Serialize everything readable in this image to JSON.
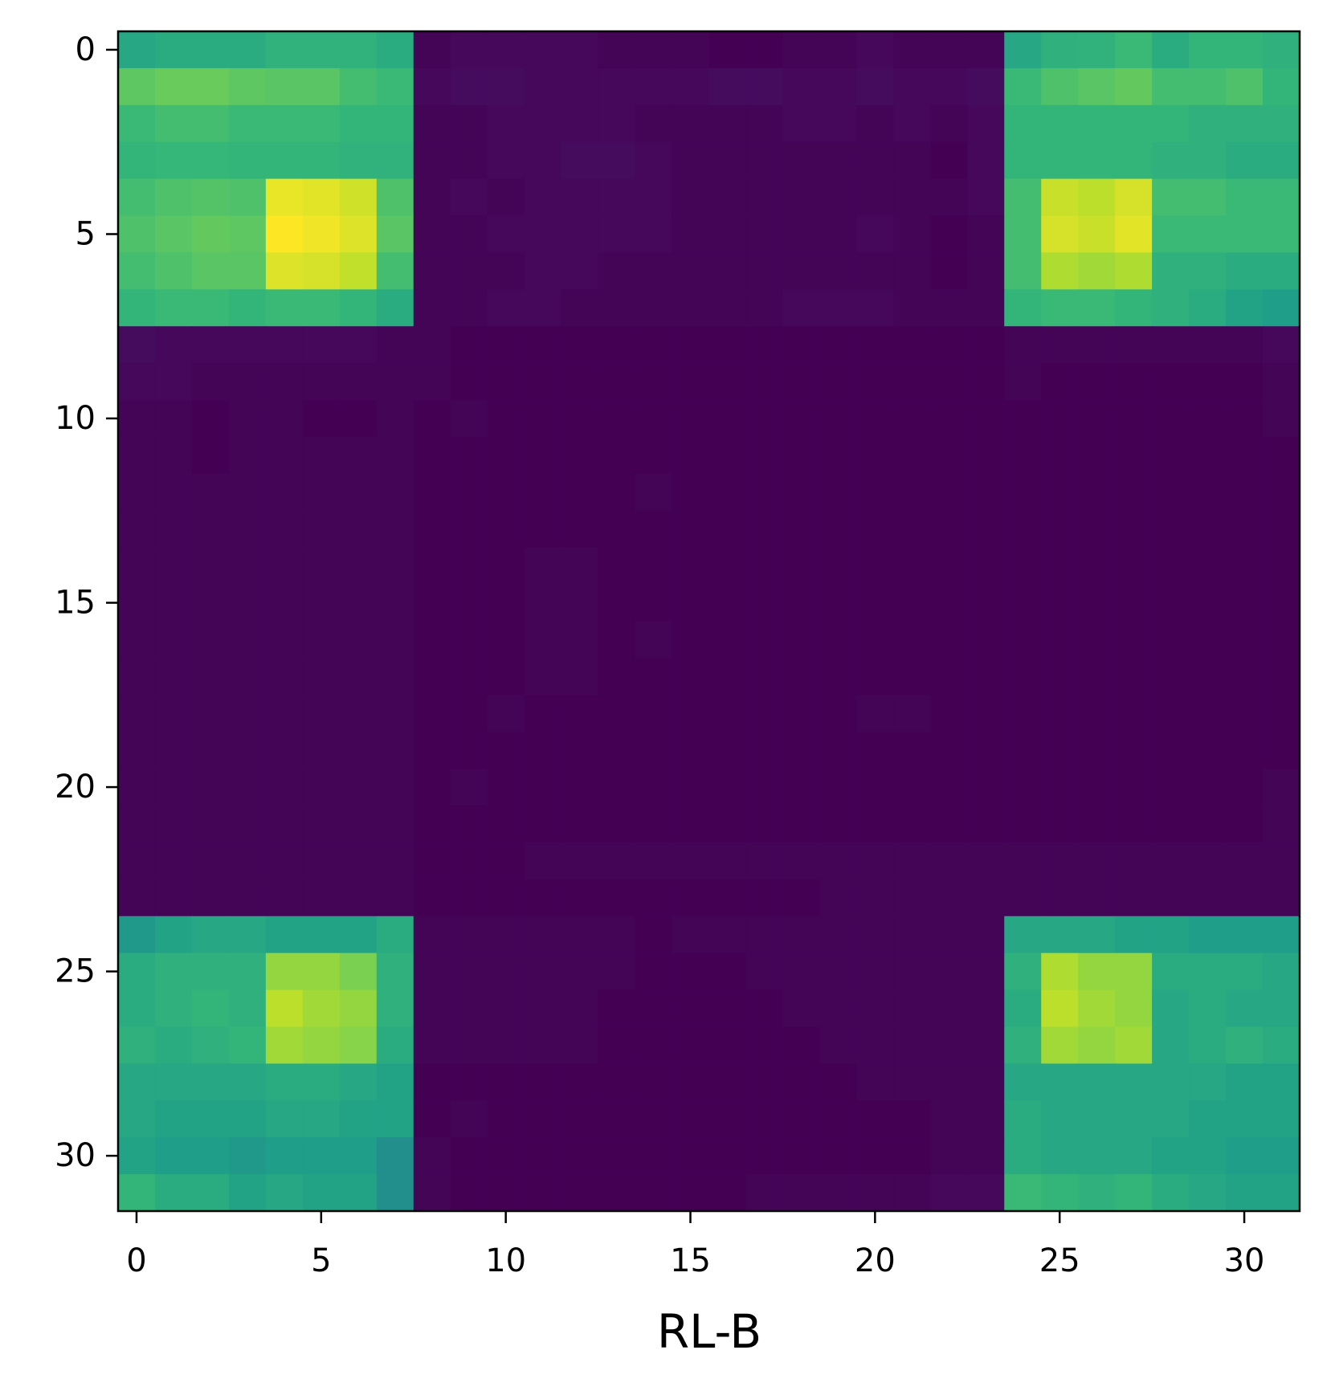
{
  "chart_data": {
    "type": "heatmap",
    "xlabel": "RL-B",
    "colormap": "viridis",
    "xlim": [
      -0.5,
      31.5
    ],
    "ylim": [
      31.5,
      -0.5
    ],
    "xticks": [
      0,
      5,
      10,
      15,
      20,
      25,
      30
    ],
    "yticks": [
      0,
      5,
      10,
      15,
      20,
      25,
      30
    ],
    "values": [
      [
        0.6,
        0.62,
        0.62,
        0.62,
        0.65,
        0.65,
        0.65,
        0.62,
        0.02,
        0.03,
        0.03,
        0.03,
        0.03,
        0.02,
        0.02,
        0.02,
        0.01,
        0.01,
        0.02,
        0.02,
        0.03,
        0.02,
        0.02,
        0.02,
        0.6,
        0.64,
        0.65,
        0.68,
        0.62,
        0.66,
        0.66,
        0.64
      ],
      [
        0.75,
        0.77,
        0.77,
        0.75,
        0.74,
        0.74,
        0.7,
        0.68,
        0.03,
        0.04,
        0.04,
        0.03,
        0.03,
        0.03,
        0.03,
        0.03,
        0.04,
        0.04,
        0.03,
        0.03,
        0.04,
        0.03,
        0.03,
        0.04,
        0.68,
        0.72,
        0.74,
        0.76,
        0.7,
        0.7,
        0.72,
        0.66
      ],
      [
        0.68,
        0.7,
        0.7,
        0.68,
        0.68,
        0.68,
        0.66,
        0.66,
        0.02,
        0.02,
        0.03,
        0.03,
        0.03,
        0.03,
        0.02,
        0.02,
        0.02,
        0.02,
        0.03,
        0.03,
        0.02,
        0.03,
        0.02,
        0.03,
        0.66,
        0.66,
        0.66,
        0.66,
        0.66,
        0.64,
        0.64,
        0.64
      ],
      [
        0.66,
        0.67,
        0.67,
        0.66,
        0.66,
        0.66,
        0.65,
        0.65,
        0.02,
        0.02,
        0.03,
        0.03,
        0.04,
        0.04,
        0.03,
        0.02,
        0.02,
        0.02,
        0.02,
        0.02,
        0.02,
        0.02,
        0.01,
        0.03,
        0.66,
        0.66,
        0.66,
        0.66,
        0.64,
        0.64,
        0.62,
        0.62
      ],
      [
        0.7,
        0.72,
        0.73,
        0.72,
        0.97,
        0.96,
        0.93,
        0.72,
        0.02,
        0.03,
        0.02,
        0.03,
        0.03,
        0.03,
        0.03,
        0.02,
        0.02,
        0.02,
        0.02,
        0.02,
        0.02,
        0.02,
        0.02,
        0.03,
        0.7,
        0.92,
        0.9,
        0.94,
        0.7,
        0.7,
        0.68,
        0.68
      ],
      [
        0.72,
        0.74,
        0.76,
        0.75,
        1.0,
        0.98,
        0.95,
        0.74,
        0.02,
        0.02,
        0.03,
        0.03,
        0.03,
        0.03,
        0.03,
        0.02,
        0.02,
        0.02,
        0.02,
        0.02,
        0.03,
        0.02,
        0.01,
        0.02,
        0.7,
        0.94,
        0.92,
        0.96,
        0.68,
        0.68,
        0.68,
        0.68
      ],
      [
        0.7,
        0.72,
        0.74,
        0.74,
        0.95,
        0.94,
        0.91,
        0.7,
        0.02,
        0.02,
        0.02,
        0.03,
        0.03,
        0.02,
        0.02,
        0.02,
        0.02,
        0.02,
        0.02,
        0.02,
        0.02,
        0.02,
        0.01,
        0.02,
        0.7,
        0.88,
        0.86,
        0.88,
        0.64,
        0.64,
        0.62,
        0.62
      ],
      [
        0.66,
        0.68,
        0.68,
        0.66,
        0.68,
        0.68,
        0.66,
        0.62,
        0.02,
        0.02,
        0.03,
        0.03,
        0.02,
        0.02,
        0.02,
        0.02,
        0.02,
        0.02,
        0.03,
        0.03,
        0.03,
        0.02,
        0.02,
        0.02,
        0.66,
        0.68,
        0.68,
        0.66,
        0.64,
        0.62,
        0.58,
        0.56
      ],
      [
        0.04,
        0.03,
        0.03,
        0.03,
        0.03,
        0.03,
        0.03,
        0.02,
        0.02,
        0.01,
        0.01,
        0.01,
        0.01,
        0.01,
        0.01,
        0.01,
        0.01,
        0.01,
        0.01,
        0.01,
        0.01,
        0.01,
        0.01,
        0.01,
        0.02,
        0.02,
        0.02,
        0.02,
        0.02,
        0.02,
        0.02,
        0.03
      ],
      [
        0.03,
        0.03,
        0.02,
        0.02,
        0.02,
        0.02,
        0.02,
        0.02,
        0.02,
        0.01,
        0.01,
        0.01,
        0.01,
        0.01,
        0.01,
        0.01,
        0.01,
        0.01,
        0.01,
        0.01,
        0.01,
        0.01,
        0.01,
        0.01,
        0.02,
        0.01,
        0.01,
        0.01,
        0.01,
        0.01,
        0.01,
        0.02
      ],
      [
        0.02,
        0.02,
        0.01,
        0.02,
        0.02,
        0.01,
        0.01,
        0.02,
        0.01,
        0.02,
        0.01,
        0.01,
        0.01,
        0.01,
        0.01,
        0.01,
        0.01,
        0.01,
        0.01,
        0.01,
        0.01,
        0.01,
        0.01,
        0.01,
        0.01,
        0.01,
        0.01,
        0.01,
        0.01,
        0.01,
        0.01,
        0.02
      ],
      [
        0.02,
        0.02,
        0.01,
        0.02,
        0.02,
        0.02,
        0.02,
        0.02,
        0.01,
        0.01,
        0.01,
        0.01,
        0.01,
        0.01,
        0.01,
        0.01,
        0.01,
        0.01,
        0.01,
        0.01,
        0.01,
        0.01,
        0.01,
        0.01,
        0.01,
        0.01,
        0.01,
        0.01,
        0.01,
        0.01,
        0.01,
        0.01
      ],
      [
        0.02,
        0.02,
        0.02,
        0.02,
        0.02,
        0.02,
        0.02,
        0.02,
        0.01,
        0.01,
        0.01,
        0.01,
        0.01,
        0.01,
        0.02,
        0.01,
        0.01,
        0.01,
        0.01,
        0.01,
        0.01,
        0.01,
        0.01,
        0.01,
        0.01,
        0.01,
        0.01,
        0.01,
        0.01,
        0.01,
        0.01,
        0.01
      ],
      [
        0.02,
        0.02,
        0.02,
        0.02,
        0.02,
        0.02,
        0.02,
        0.02,
        0.01,
        0.01,
        0.01,
        0.01,
        0.01,
        0.01,
        0.01,
        0.01,
        0.01,
        0.01,
        0.01,
        0.01,
        0.01,
        0.01,
        0.01,
        0.01,
        0.01,
        0.01,
        0.01,
        0.01,
        0.01,
        0.01,
        0.01,
        0.01
      ],
      [
        0.02,
        0.02,
        0.02,
        0.02,
        0.02,
        0.02,
        0.02,
        0.02,
        0.01,
        0.01,
        0.01,
        0.02,
        0.02,
        0.01,
        0.01,
        0.01,
        0.01,
        0.01,
        0.01,
        0.01,
        0.01,
        0.01,
        0.01,
        0.01,
        0.01,
        0.01,
        0.01,
        0.01,
        0.01,
        0.01,
        0.01,
        0.01
      ],
      [
        0.02,
        0.02,
        0.02,
        0.02,
        0.02,
        0.02,
        0.02,
        0.02,
        0.01,
        0.01,
        0.01,
        0.02,
        0.02,
        0.01,
        0.01,
        0.01,
        0.01,
        0.01,
        0.01,
        0.01,
        0.01,
        0.01,
        0.01,
        0.01,
        0.01,
        0.01,
        0.01,
        0.01,
        0.01,
        0.01,
        0.01,
        0.01
      ],
      [
        0.02,
        0.02,
        0.02,
        0.02,
        0.02,
        0.02,
        0.02,
        0.02,
        0.01,
        0.01,
        0.01,
        0.02,
        0.02,
        0.01,
        0.02,
        0.01,
        0.01,
        0.01,
        0.01,
        0.01,
        0.01,
        0.01,
        0.01,
        0.01,
        0.01,
        0.01,
        0.01,
        0.01,
        0.01,
        0.01,
        0.01,
        0.01
      ],
      [
        0.02,
        0.02,
        0.02,
        0.02,
        0.02,
        0.02,
        0.02,
        0.02,
        0.01,
        0.01,
        0.01,
        0.02,
        0.02,
        0.01,
        0.01,
        0.01,
        0.01,
        0.01,
        0.01,
        0.01,
        0.01,
        0.01,
        0.01,
        0.01,
        0.01,
        0.01,
        0.01,
        0.01,
        0.01,
        0.01,
        0.01,
        0.01
      ],
      [
        0.02,
        0.02,
        0.02,
        0.02,
        0.02,
        0.02,
        0.02,
        0.02,
        0.01,
        0.01,
        0.02,
        0.01,
        0.01,
        0.01,
        0.01,
        0.01,
        0.01,
        0.01,
        0.01,
        0.01,
        0.02,
        0.02,
        0.01,
        0.01,
        0.01,
        0.01,
        0.01,
        0.01,
        0.01,
        0.01,
        0.01,
        0.01
      ],
      [
        0.02,
        0.02,
        0.02,
        0.02,
        0.02,
        0.02,
        0.02,
        0.02,
        0.01,
        0.01,
        0.01,
        0.01,
        0.01,
        0.01,
        0.01,
        0.01,
        0.01,
        0.01,
        0.01,
        0.01,
        0.01,
        0.01,
        0.01,
        0.01,
        0.01,
        0.01,
        0.01,
        0.01,
        0.01,
        0.01,
        0.01,
        0.01
      ],
      [
        0.02,
        0.02,
        0.02,
        0.02,
        0.02,
        0.02,
        0.02,
        0.02,
        0.01,
        0.02,
        0.01,
        0.01,
        0.01,
        0.01,
        0.01,
        0.01,
        0.01,
        0.01,
        0.01,
        0.01,
        0.01,
        0.01,
        0.01,
        0.01,
        0.01,
        0.01,
        0.01,
        0.01,
        0.01,
        0.01,
        0.01,
        0.02
      ],
      [
        0.02,
        0.02,
        0.02,
        0.02,
        0.02,
        0.02,
        0.02,
        0.02,
        0.01,
        0.01,
        0.01,
        0.01,
        0.01,
        0.01,
        0.01,
        0.01,
        0.01,
        0.01,
        0.01,
        0.01,
        0.01,
        0.01,
        0.01,
        0.01,
        0.01,
        0.01,
        0.01,
        0.01,
        0.01,
        0.01,
        0.01,
        0.02
      ],
      [
        0.02,
        0.02,
        0.02,
        0.02,
        0.02,
        0.02,
        0.02,
        0.02,
        0.01,
        0.01,
        0.01,
        0.02,
        0.02,
        0.02,
        0.02,
        0.02,
        0.02,
        0.02,
        0.02,
        0.02,
        0.02,
        0.02,
        0.02,
        0.02,
        0.02,
        0.02,
        0.02,
        0.02,
        0.02,
        0.02,
        0.02,
        0.02
      ],
      [
        0.02,
        0.02,
        0.02,
        0.02,
        0.02,
        0.02,
        0.02,
        0.02,
        0.01,
        0.01,
        0.01,
        0.01,
        0.01,
        0.01,
        0.01,
        0.01,
        0.01,
        0.01,
        0.01,
        0.02,
        0.02,
        0.02,
        0.02,
        0.02,
        0.02,
        0.02,
        0.02,
        0.02,
        0.02,
        0.02,
        0.02,
        0.02
      ],
      [
        0.54,
        0.58,
        0.6,
        0.6,
        0.58,
        0.58,
        0.58,
        0.62,
        0.02,
        0.02,
        0.02,
        0.02,
        0.02,
        0.02,
        0.01,
        0.02,
        0.02,
        0.02,
        0.02,
        0.02,
        0.02,
        0.02,
        0.02,
        0.02,
        0.6,
        0.6,
        0.6,
        0.58,
        0.58,
        0.56,
        0.56,
        0.56
      ],
      [
        0.62,
        0.64,
        0.64,
        0.64,
        0.84,
        0.84,
        0.8,
        0.64,
        0.02,
        0.02,
        0.02,
        0.02,
        0.02,
        0.02,
        0.01,
        0.01,
        0.01,
        0.02,
        0.02,
        0.02,
        0.02,
        0.02,
        0.02,
        0.02,
        0.64,
        0.88,
        0.84,
        0.84,
        0.62,
        0.62,
        0.62,
        0.6
      ],
      [
        0.62,
        0.64,
        0.66,
        0.64,
        0.9,
        0.86,
        0.84,
        0.64,
        0.02,
        0.02,
        0.02,
        0.02,
        0.02,
        0.01,
        0.01,
        0.01,
        0.01,
        0.01,
        0.02,
        0.02,
        0.02,
        0.02,
        0.02,
        0.02,
        0.62,
        0.9,
        0.86,
        0.84,
        0.6,
        0.62,
        0.6,
        0.6
      ],
      [
        0.64,
        0.62,
        0.64,
        0.66,
        0.86,
        0.84,
        0.82,
        0.62,
        0.02,
        0.02,
        0.02,
        0.02,
        0.02,
        0.01,
        0.01,
        0.01,
        0.01,
        0.01,
        0.01,
        0.02,
        0.02,
        0.02,
        0.02,
        0.02,
        0.64,
        0.86,
        0.84,
        0.86,
        0.6,
        0.62,
        0.64,
        0.62
      ],
      [
        0.6,
        0.6,
        0.6,
        0.6,
        0.62,
        0.62,
        0.6,
        0.58,
        0.01,
        0.01,
        0.01,
        0.01,
        0.01,
        0.01,
        0.01,
        0.01,
        0.01,
        0.01,
        0.01,
        0.01,
        0.02,
        0.02,
        0.02,
        0.02,
        0.6,
        0.6,
        0.6,
        0.6,
        0.6,
        0.6,
        0.58,
        0.58
      ],
      [
        0.6,
        0.58,
        0.58,
        0.58,
        0.6,
        0.6,
        0.58,
        0.58,
        0.01,
        0.02,
        0.01,
        0.01,
        0.01,
        0.01,
        0.01,
        0.01,
        0.01,
        0.01,
        0.01,
        0.01,
        0.01,
        0.01,
        0.02,
        0.02,
        0.62,
        0.6,
        0.6,
        0.6,
        0.6,
        0.58,
        0.58,
        0.58
      ],
      [
        0.58,
        0.56,
        0.56,
        0.54,
        0.56,
        0.56,
        0.56,
        0.5,
        0.02,
        0.01,
        0.01,
        0.01,
        0.01,
        0.01,
        0.01,
        0.01,
        0.01,
        0.01,
        0.01,
        0.01,
        0.01,
        0.01,
        0.02,
        0.02,
        0.62,
        0.6,
        0.6,
        0.6,
        0.58,
        0.58,
        0.56,
        0.56
      ],
      [
        0.66,
        0.62,
        0.62,
        0.58,
        0.6,
        0.58,
        0.58,
        0.5,
        0.02,
        0.01,
        0.01,
        0.01,
        0.01,
        0.01,
        0.01,
        0.01,
        0.01,
        0.02,
        0.02,
        0.02,
        0.02,
        0.02,
        0.03,
        0.03,
        0.68,
        0.66,
        0.64,
        0.66,
        0.62,
        0.6,
        0.58,
        0.58
      ]
    ]
  }
}
